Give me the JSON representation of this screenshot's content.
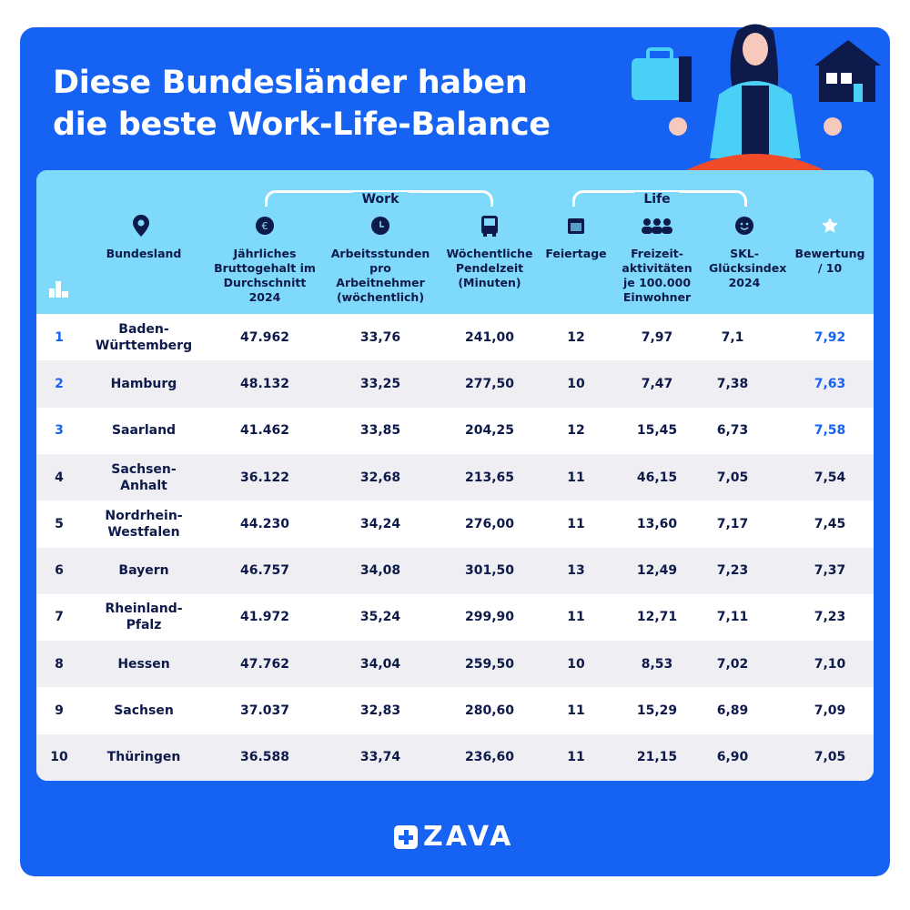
{
  "title_line1": "Diese Bundesländer haben",
  "title_line2": "die beste Work-Life-Balance",
  "groups": {
    "work": "Work",
    "life": "Life"
  },
  "headers": [
    {
      "key": "bundesland",
      "label": "Bundesland",
      "icon": "location-pin-icon"
    },
    {
      "key": "gehalt",
      "label": "Jährliches Bruttogehalt im Durchschnitt 2024",
      "icon": "euro-icon"
    },
    {
      "key": "stunden",
      "label": "Arbeitsstunden pro Arbeitnehmer (wöchentlich)",
      "icon": "clock-icon"
    },
    {
      "key": "pendel",
      "label": "Wöchentliche Pendelzeit (Minuten)",
      "icon": "bus-icon"
    },
    {
      "key": "feiertage",
      "label": "Feiertage",
      "icon": "calendar-icon"
    },
    {
      "key": "freizeit",
      "label": "Freizeit-aktivitäten je 100.000 Einwohner",
      "icon": "people-icon"
    },
    {
      "key": "skl",
      "label": "SKL-Glücksindex 2024",
      "icon": "smiley-icon"
    },
    {
      "key": "bewertung",
      "label": "Bewertung / 10",
      "icon": "star-icon"
    }
  ],
  "rank_icon": "ranking-bars-icon",
  "rows": [
    [
      "1",
      "Baden-Württemberg",
      "47.962",
      "33,76",
      "241,00",
      "12",
      "7,97",
      "7,1",
      "7,92"
    ],
    [
      "2",
      "Hamburg",
      "48.132",
      "33,25",
      "277,50",
      "10",
      "7,47",
      "7,38",
      "7,63"
    ],
    [
      "3",
      "Saarland",
      "41.462",
      "33,85",
      "204,25",
      "12",
      "15,45",
      "6,73",
      "7,58"
    ],
    [
      "4",
      "Sachsen-Anhalt",
      "36.122",
      "32,68",
      "213,65",
      "11",
      "46,15",
      "7,05",
      "7,54"
    ],
    [
      "5",
      "Nordrhein-Westfalen",
      "44.230",
      "34,24",
      "276,00",
      "11",
      "13,60",
      "7,17",
      "7,45"
    ],
    [
      "6",
      "Bayern",
      "46.757",
      "34,08",
      "301,50",
      "13",
      "12,49",
      "7,23",
      "7,37"
    ],
    [
      "7",
      "Rheinland-Pfalz",
      "41.972",
      "35,24",
      "299,90",
      "11",
      "12,71",
      "7,11",
      "7,23"
    ],
    [
      "8",
      "Hessen",
      "47.762",
      "34,04",
      "259,50",
      "10",
      "8,53",
      "7,02",
      "7,10"
    ],
    [
      "9",
      "Sachsen",
      "37.037",
      "32,83",
      "280,60",
      "11",
      "15,29",
      "6,89",
      "7,09"
    ],
    [
      "10",
      "Thüringen",
      "36.588",
      "33,74",
      "236,60",
      "11",
      "21,15",
      "6,90",
      "7,05"
    ]
  ],
  "logo": "ZAVA",
  "colors": {
    "background": "#1662f2",
    "header": "#7fd9fb",
    "text": "#0d1a4a",
    "highlight": "#1662f2",
    "row_alt": "#efeff3"
  }
}
